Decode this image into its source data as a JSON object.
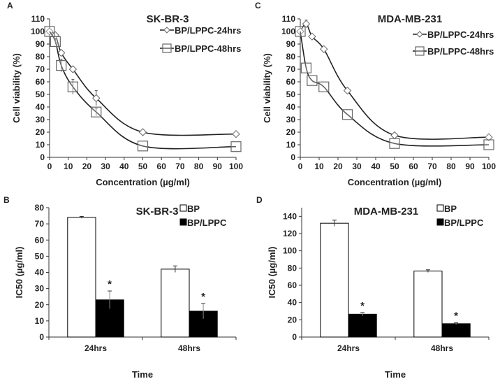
{
  "chart_data": [
    {
      "panel": "A",
      "type": "line",
      "title": "SK-BR-3",
      "xlabel": "Concentration (µg/ml)",
      "ylabel": "Cell viability (%)",
      "xlim": [
        0,
        100
      ],
      "ylim": [
        0,
        110
      ],
      "xticks": [
        0,
        10,
        20,
        30,
        40,
        50,
        60,
        70,
        80,
        90,
        100
      ],
      "yticks": [
        0,
        10,
        20,
        30,
        40,
        50,
        60,
        70,
        80,
        90,
        100,
        110
      ],
      "legend_position": "top-right",
      "x": [
        0,
        3.125,
        6.25,
        12.5,
        25,
        50,
        100
      ],
      "series": [
        {
          "name": "BP/LPPC-24hrs",
          "marker": "diamond",
          "values": [
            100,
            97,
            83,
            70,
            47,
            20,
            18.5
          ],
          "errors": [
            1,
            1,
            2,
            1.5,
            6,
            1,
            1
          ]
        },
        {
          "name": "BP/LPPC-48hrs",
          "marker": "square",
          "values": [
            100,
            92,
            73,
            56,
            36,
            9,
            8.5
          ],
          "errors": [
            1,
            2,
            5,
            6,
            3,
            1,
            1
          ]
        }
      ]
    },
    {
      "panel": "C",
      "type": "line",
      "title": "MDA-MB-231",
      "xlabel": "Concentration (µg/ml)",
      "ylabel": "Cell viability (%)",
      "xlim": [
        0,
        100
      ],
      "ylim": [
        0,
        110
      ],
      "xticks": [
        0,
        10,
        20,
        30,
        40,
        50,
        60,
        70,
        80,
        90,
        100
      ],
      "yticks": [
        0,
        10,
        20,
        30,
        40,
        50,
        60,
        70,
        80,
        90,
        100,
        110
      ],
      "legend_position": "top-right",
      "x": [
        0,
        3.125,
        6.25,
        12.5,
        25,
        50,
        100
      ],
      "series": [
        {
          "name": "BP/LPPC-24hrs",
          "marker": "diamond",
          "values": [
            100,
            106,
            96,
            86,
            53,
            17.5,
            16
          ],
          "errors": [
            1,
            3,
            1,
            1,
            1,
            1,
            1
          ]
        },
        {
          "name": "BP/LPPC-48hrs",
          "marker": "square",
          "values": [
            100,
            71,
            61,
            56,
            34,
            11,
            10
          ],
          "errors": [
            1,
            1,
            1,
            1,
            1,
            1,
            1
          ]
        }
      ]
    },
    {
      "panel": "B",
      "type": "bar",
      "title": "SK-BR-3",
      "xlabel": "Time",
      "ylabel": "IC50 (µg/ml)",
      "ylim": [
        0,
        80
      ],
      "yticks": [
        0,
        10,
        20,
        30,
        40,
        50,
        60,
        70,
        80
      ],
      "categories": [
        "24hrs",
        "48hrs"
      ],
      "legend_position": "top-right",
      "series": [
        {
          "name": "BP",
          "color": "#ffffff",
          "values": [
            74,
            42
          ],
          "errors": [
            0.6,
            2
          ],
          "sig": [
            "",
            ""
          ]
        },
        {
          "name": "BP/LPPC",
          "color": "#000000",
          "values": [
            23,
            16
          ],
          "errors": [
            5.5,
            4.7
          ],
          "sig": [
            "*",
            "*"
          ]
        }
      ]
    },
    {
      "panel": "D",
      "type": "bar",
      "title": "MDA-MB-231",
      "xlabel": "Time",
      "ylabel": "IC50 (µg/ml)",
      "ylim": [
        0,
        150
      ],
      "yticks": [
        0,
        20,
        40,
        60,
        80,
        100,
        120,
        140
      ],
      "categories": [
        "24hrs",
        "48hrs"
      ],
      "legend_position": "top-right",
      "series": [
        {
          "name": "BP",
          "color": "#ffffff",
          "values": [
            132,
            76.5
          ],
          "errors": [
            3.5,
            1.5
          ],
          "sig": [
            "",
            ""
          ]
        },
        {
          "name": "BP/LPPC",
          "color": "#000000",
          "values": [
            26.5,
            15.5
          ],
          "errors": [
            2,
            1
          ],
          "sig": [
            "*",
            "*"
          ]
        }
      ]
    }
  ]
}
